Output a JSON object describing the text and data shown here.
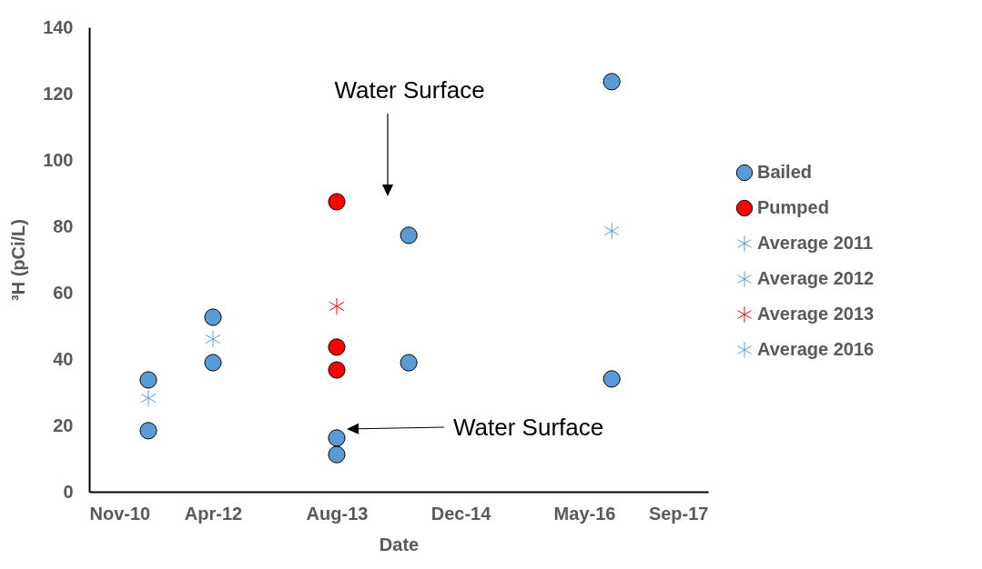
{
  "chart_data": {
    "type": "scatter",
    "xlabel": "Date",
    "ylabel": "³H (pCi/L)",
    "xlim": [
      "2010-11-18",
      "2017-09-22"
    ],
    "xticks": [
      {
        "value": "2010-11-18",
        "label": "Nov-10"
      },
      {
        "value": "2012-04-01",
        "label": "Apr-12"
      },
      {
        "value": "2013-08-14",
        "label": "Aug-13"
      },
      {
        "value": "2014-12-27",
        "label": "Dec-14"
      },
      {
        "value": "2016-05-10",
        "label": "May-16"
      },
      {
        "value": "2017-09-22",
        "label": "Sep-17"
      }
    ],
    "ylim": [
      0,
      140
    ],
    "yticks": [
      0,
      20,
      40,
      60,
      80,
      100,
      120,
      140
    ],
    "legend": "right",
    "grid": false,
    "series": [
      {
        "name": "Bailed",
        "color": "#5b9bd5",
        "marker": "circle",
        "x": [
          "2011-07-15",
          "2011-07-15",
          "2012-04-01",
          "2012-04-01",
          "2013-08-14",
          "2013-08-14",
          "2014-06-01",
          "2014-06-01",
          "2016-08-29",
          "2016-08-29"
        ],
        "values": [
          33.7,
          18.4,
          52.6,
          38.9,
          16.2,
          11.2,
          77.3,
          38.9,
          123.6,
          34
        ]
      },
      {
        "name": "Pumped",
        "color": "#ff0000",
        "marker": "circle",
        "x": [
          "2013-08-14",
          "2013-08-14",
          "2013-08-14"
        ],
        "values": [
          87.4,
          43.6,
          36.7
        ]
      },
      {
        "name": "Average 2011",
        "color": "#5b9bd5",
        "marker": "cross",
        "x": [
          "2011-07-15"
        ],
        "values": [
          28.2
        ]
      },
      {
        "name": "Average 2012",
        "color": "#5b9bd5",
        "marker": "cross",
        "x": [
          "2012-04-01"
        ],
        "values": [
          46
        ]
      },
      {
        "name": "Average 2013",
        "color": "#ff0000",
        "marker": "cross",
        "x": [
          "2013-08-14"
        ],
        "values": [
          55.9
        ]
      },
      {
        "name": "Average 2016",
        "color": "#5b9bd5",
        "marker": "cross",
        "x": [
          "2016-08-29"
        ],
        "values": [
          78.6
        ]
      }
    ],
    "annotations": [
      "Water Surface",
      "Water Surface"
    ]
  }
}
